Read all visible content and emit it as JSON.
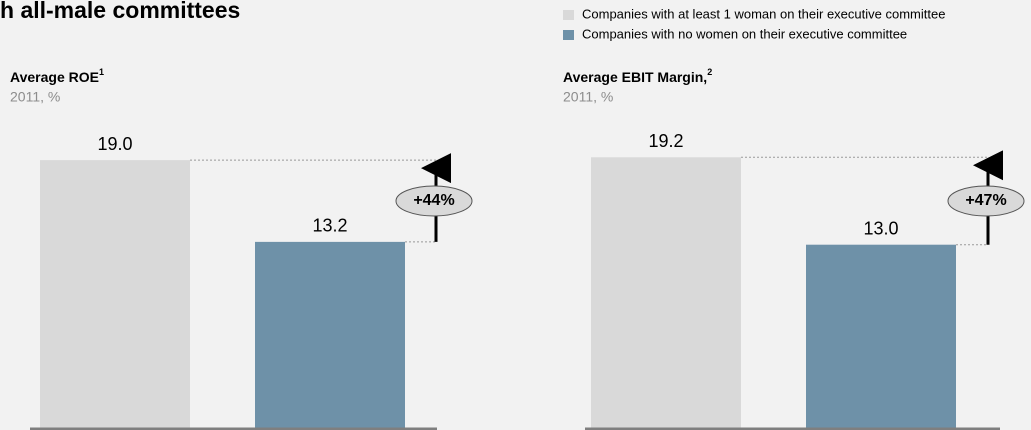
{
  "header": {
    "title": "h all-male committees"
  },
  "chart_data": [
    {
      "type": "bar",
      "title": "Average ROE",
      "title_superscript": "1",
      "subtitle": "2011, %",
      "series": [
        {
          "name": "Companies with at least 1 woman on their executive committee",
          "color": "#d9d9d9",
          "values": [
            19.0
          ],
          "value_labels": [
            "19.0"
          ]
        },
        {
          "name": "Companies with no women on their executive committee",
          "color": "#6e91a8",
          "values": [
            13.2
          ],
          "value_labels": [
            "13.2"
          ]
        }
      ],
      "ylim": [
        0,
        20
      ],
      "annotation": "+44%"
    },
    {
      "type": "bar",
      "title": "Average EBIT Margin,",
      "title_superscript": "2",
      "subtitle": "2011, %",
      "series": [
        {
          "color": "#d9d9d9",
          "values": [
            19.2
          ],
          "value_labels": [
            "19.2"
          ]
        },
        {
          "color": "#6e91a8",
          "values": [
            13.0
          ],
          "value_labels": [
            "13.0"
          ]
        }
      ],
      "ylim": [
        0,
        20
      ],
      "annotation": "+47%"
    }
  ]
}
